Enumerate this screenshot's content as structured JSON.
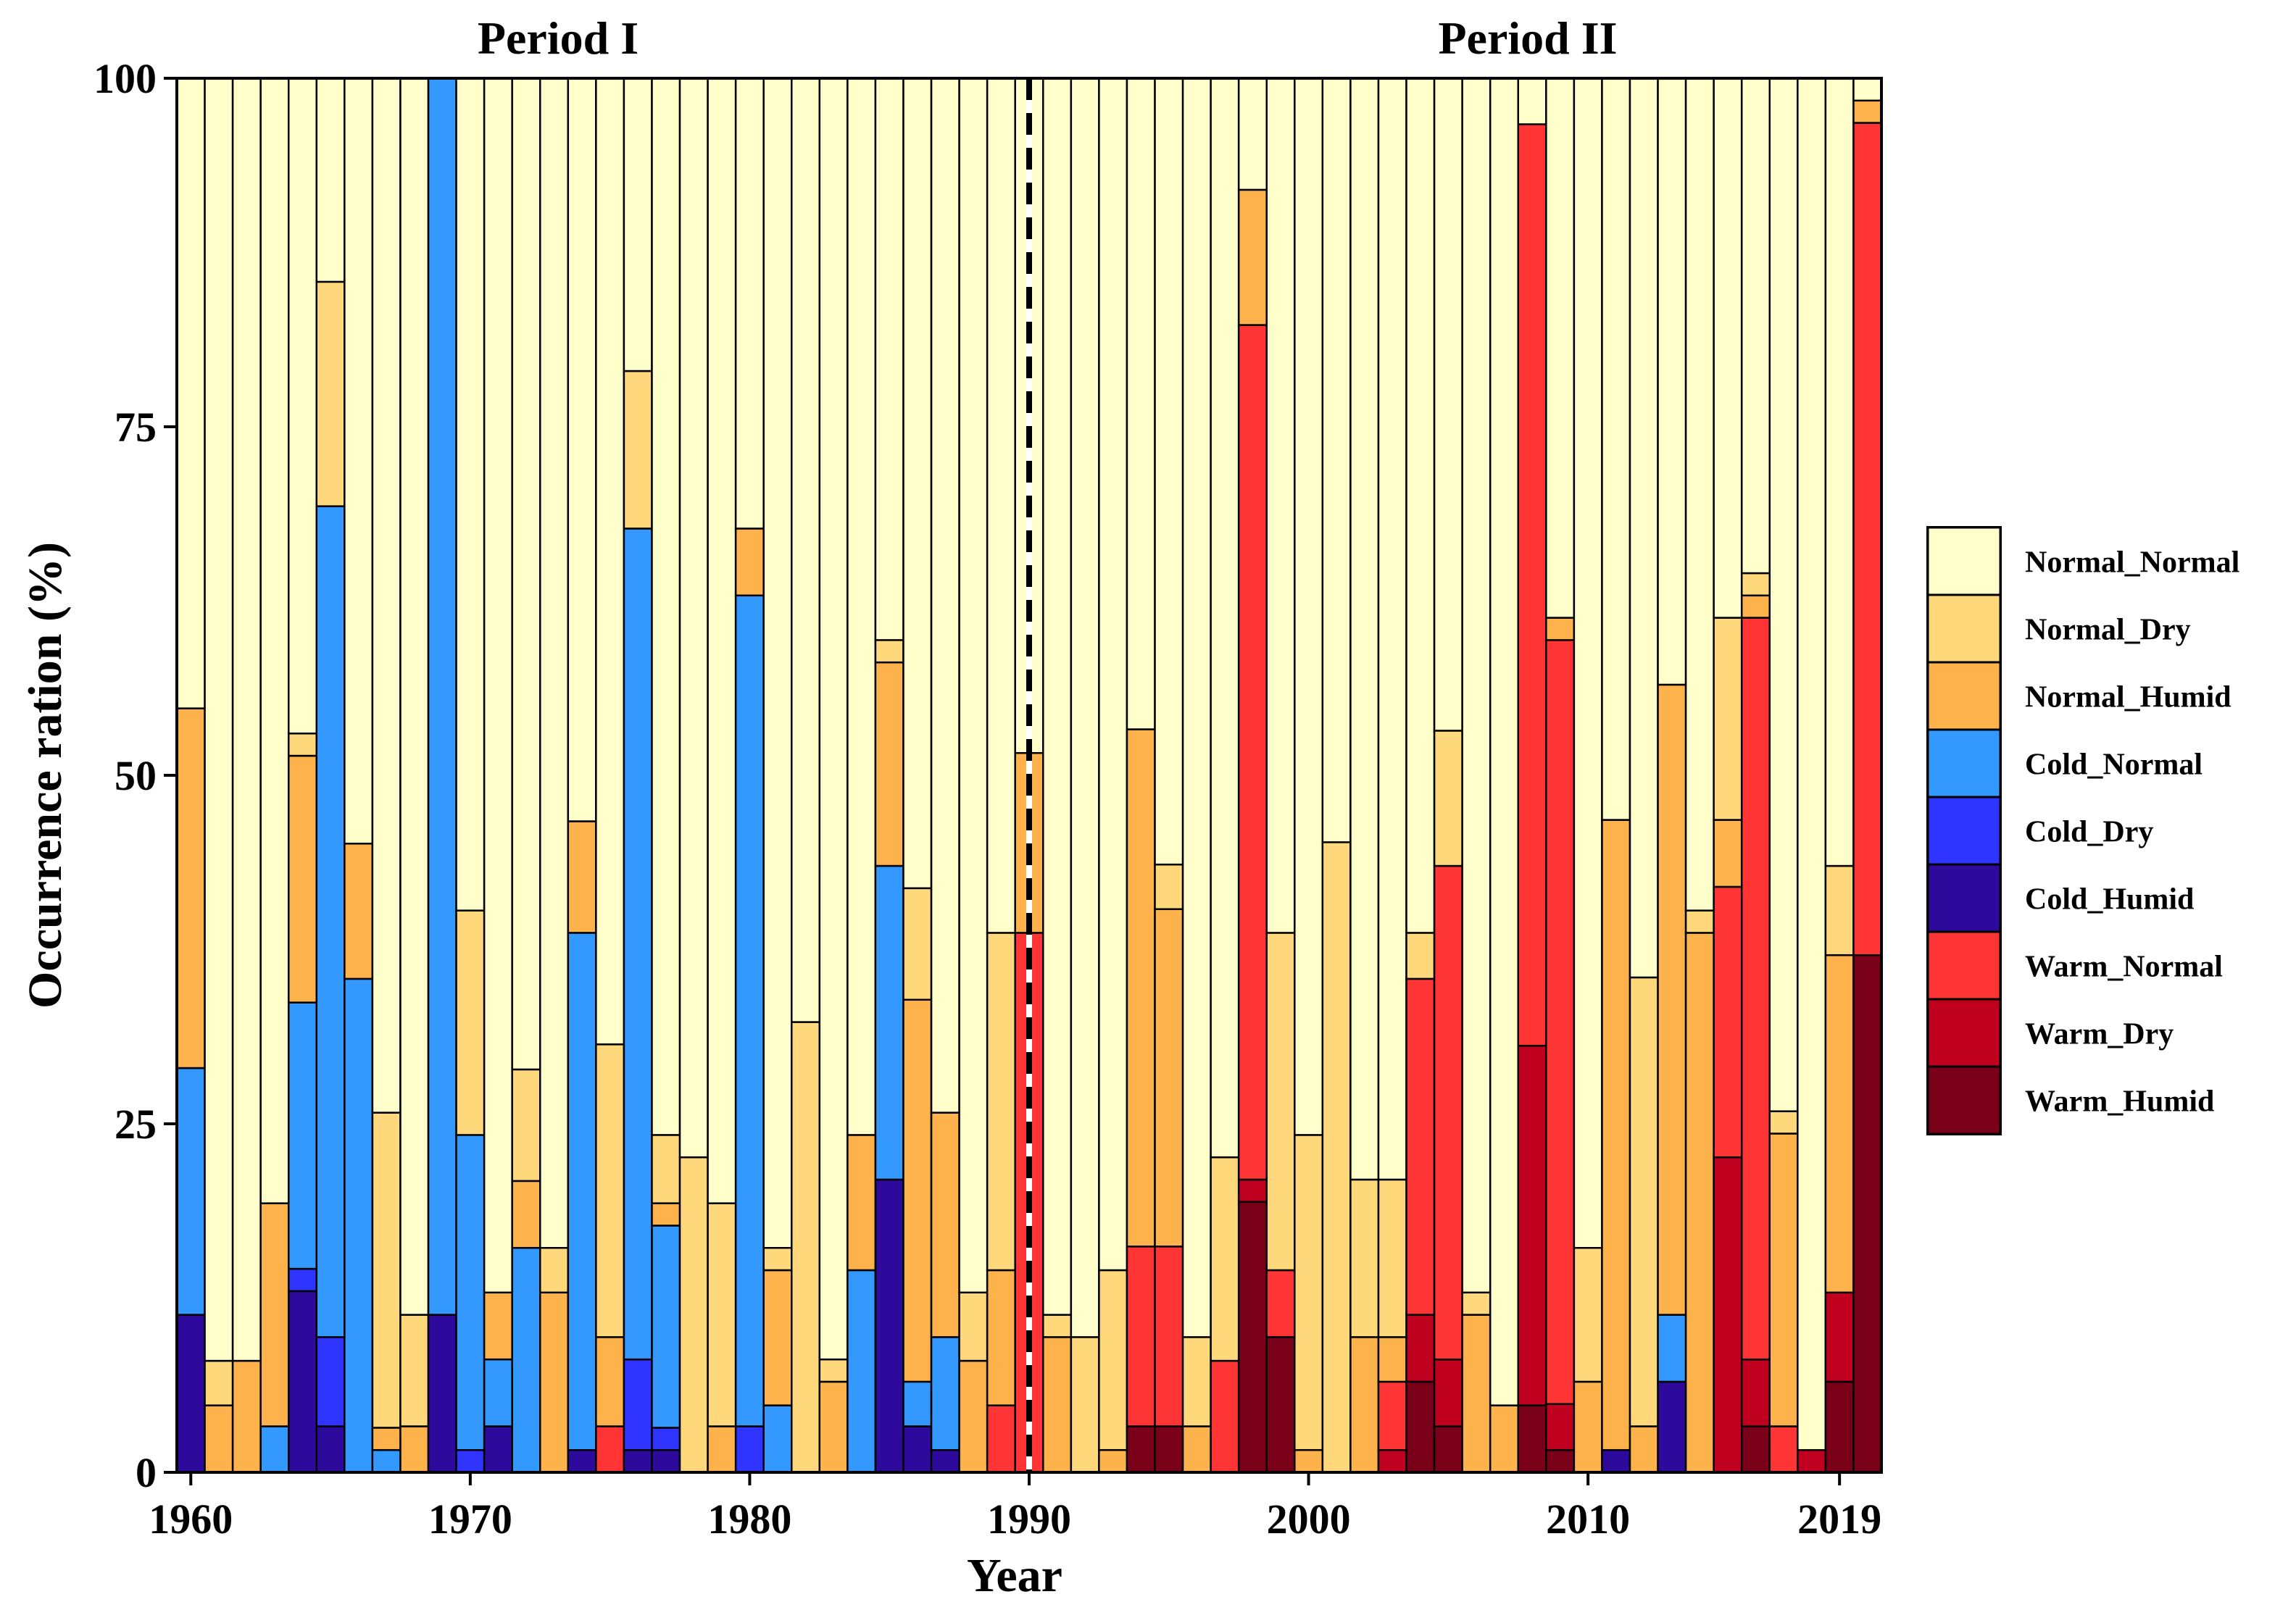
{
  "chart_data": {
    "type": "bar",
    "stacked": true,
    "title": "",
    "period_labels": [
      "Period I",
      "Period II"
    ],
    "xlabel": "Year",
    "ylabel": "Occurrence ration (%)",
    "ylim": [
      0,
      100
    ],
    "yticks": [
      "0",
      "25",
      "50",
      "75",
      "100"
    ],
    "xticks": [
      {
        "year": 1960,
        "label": "1960"
      },
      {
        "year": 1970,
        "label": "1970"
      },
      {
        "year": 1980,
        "label": "1980"
      },
      {
        "year": 1990,
        "label": "1990"
      },
      {
        "year": 2000,
        "label": "2000"
      },
      {
        "year": 2010,
        "label": "2010"
      },
      {
        "year": 2019,
        "label": "2019"
      }
    ],
    "divider_year": 1990,
    "legend_position": "right",
    "series": [
      {
        "name": "Warm_Humid",
        "color": "#7a0019"
      },
      {
        "name": "Warm_Dry",
        "color": "#c0001f"
      },
      {
        "name": "Warm_Normal",
        "color": "#ff3535"
      },
      {
        "name": "Cold_Humid",
        "color": "#2e0a9c"
      },
      {
        "name": "Cold_Dry",
        "color": "#2f35ff"
      },
      {
        "name": "Cold_Normal",
        "color": "#3399ff"
      },
      {
        "name": "Normal_Humid",
        "color": "#fdb24c"
      },
      {
        "name": "Normal_Dry",
        "color": "#fed87a"
      },
      {
        "name": "Normal_Normal",
        "color": "#ffffcc"
      }
    ],
    "legend_order": [
      "Normal_Normal",
      "Normal_Dry",
      "Normal_Humid",
      "Cold_Normal",
      "Cold_Dry",
      "Cold_Humid",
      "Warm_Normal",
      "Warm_Dry",
      "Warm_Humid"
    ],
    "years": [
      {
        "year": 1960,
        "segments": {
          "Cold_Humid": 11.3,
          "Cold_Normal": 17.7,
          "Normal_Humid": 25.8
        }
      },
      {
        "year": 1961,
        "segments": {
          "Normal_Humid": 4.8,
          "Normal_Dry": 3.2
        }
      },
      {
        "year": 1962,
        "segments": {
          "Normal_Humid": 8.0
        }
      },
      {
        "year": 1963,
        "segments": {
          "Cold_Normal": 3.3,
          "Normal_Humid": 16.0
        }
      },
      {
        "year": 1964,
        "segments": {
          "Cold_Humid": 13.0,
          "Cold_Dry": 1.6,
          "Cold_Normal": 19.1,
          "Normal_Humid": 17.7,
          "Normal_Dry": 1.6
        }
      },
      {
        "year": 1965,
        "segments": {
          "Cold_Humid": 3.3,
          "Cold_Dry": 6.4,
          "Cold_Normal": 59.6,
          "Normal_Dry": 16.1
        }
      },
      {
        "year": 1966,
        "segments": {
          "Cold_Normal": 35.4,
          "Normal_Humid": 9.7
        }
      },
      {
        "year": 1967,
        "segments": {
          "Cold_Normal": 1.6,
          "Normal_Humid": 1.6,
          "Normal_Dry": 22.6
        }
      },
      {
        "year": 1968,
        "segments": {
          "Normal_Humid": 3.3,
          "Normal_Dry": 8.0
        }
      },
      {
        "year": 1969,
        "segments": {
          "Cold_Humid": 11.3,
          "Cold_Normal": 88.7
        }
      },
      {
        "year": 1970,
        "segments": {
          "Cold_Dry": 1.6,
          "Cold_Normal": 22.6,
          "Normal_Dry": 16.1
        }
      },
      {
        "year": 1971,
        "segments": {
          "Cold_Humid": 3.3,
          "Cold_Normal": 4.8,
          "Normal_Humid": 4.8
        }
      },
      {
        "year": 1972,
        "segments": {
          "Cold_Normal": 16.1,
          "Normal_Humid": 4.8,
          "Normal_Dry": 8.0
        }
      },
      {
        "year": 1973,
        "segments": {
          "Normal_Humid": 12.9,
          "Normal_Dry": 3.2
        }
      },
      {
        "year": 1974,
        "segments": {
          "Cold_Humid": 1.6,
          "Cold_Normal": 37.1,
          "Normal_Humid": 8.0
        }
      },
      {
        "year": 1975,
        "segments": {
          "Warm_Normal": 3.3,
          "Normal_Humid": 6.4,
          "Normal_Dry": 21.0
        }
      },
      {
        "year": 1976,
        "segments": {
          "Cold_Humid": 1.6,
          "Cold_Dry": 6.5,
          "Cold_Normal": 59.6,
          "Normal_Dry": 11.3
        }
      },
      {
        "year": 1977,
        "segments": {
          "Cold_Humid": 1.6,
          "Cold_Dry": 1.6,
          "Cold_Normal": 14.5,
          "Normal_Humid": 1.6,
          "Normal_Dry": 4.9
        }
      },
      {
        "year": 1978,
        "segments": {
          "Normal_Dry": 22.6
        }
      },
      {
        "year": 1979,
        "segments": {
          "Normal_Humid": 3.3,
          "Normal_Dry": 16.0
        }
      },
      {
        "year": 1980,
        "segments": {
          "Cold_Dry": 3.3,
          "Cold_Normal": 59.6,
          "Normal_Humid": 4.8
        }
      },
      {
        "year": 1981,
        "segments": {
          "Cold_Normal": 4.8,
          "Normal_Humid": 9.7,
          "Normal_Dry": 1.6
        }
      },
      {
        "year": 1982,
        "segments": {
          "Normal_Dry": 32.3
        }
      },
      {
        "year": 1983,
        "segments": {
          "Normal_Humid": 6.5,
          "Normal_Dry": 1.6
        }
      },
      {
        "year": 1984,
        "segments": {
          "Cold_Normal": 14.5,
          "Normal_Humid": 9.7
        }
      },
      {
        "year": 1985,
        "segments": {
          "Cold_Humid": 21.0,
          "Cold_Normal": 22.5,
          "Normal_Humid": 14.6,
          "Normal_Dry": 1.6
        }
      },
      {
        "year": 1986,
        "segments": {
          "Cold_Humid": 3.3,
          "Cold_Normal": 3.2,
          "Normal_Humid": 27.4,
          "Normal_Dry": 8.0
        }
      },
      {
        "year": 1987,
        "segments": {
          "Cold_Humid": 1.6,
          "Cold_Normal": 8.1,
          "Normal_Humid": 16.1
        }
      },
      {
        "year": 1988,
        "segments": {
          "Normal_Humid": 8.0,
          "Normal_Dry": 4.9
        }
      },
      {
        "year": 1989,
        "segments": {
          "Warm_Normal": 4.8,
          "Normal_Humid": 9.7,
          "Normal_Dry": 24.2
        }
      },
      {
        "year": 1990,
        "segments": {
          "Warm_Normal": 38.7,
          "Normal_Humid": 12.9
        }
      },
      {
        "year": 1991,
        "segments": {
          "Normal_Humid": 9.7,
          "Normal_Dry": 1.6
        }
      },
      {
        "year": 1992,
        "segments": {
          "Normal_Dry": 9.7
        }
      },
      {
        "year": 1993,
        "segments": {
          "Normal_Humid": 1.6,
          "Normal_Dry": 12.9
        }
      },
      {
        "year": 1994,
        "segments": {
          "Warm_Humid": 3.3,
          "Warm_Normal": 12.9,
          "Normal_Humid": 37.1
        }
      },
      {
        "year": 1995,
        "segments": {
          "Warm_Humid": 3.3,
          "Warm_Normal": 12.9,
          "Normal_Humid": 24.2,
          "Normal_Dry": 3.2
        }
      },
      {
        "year": 1996,
        "segments": {
          "Normal_Humid": 3.3,
          "Normal_Dry": 6.4
        }
      },
      {
        "year": 1997,
        "segments": {
          "Warm_Normal": 8.0,
          "Normal_Dry": 14.6
        }
      },
      {
        "year": 1998,
        "segments": {
          "Warm_Humid": 19.4,
          "Warm_Dry": 1.6,
          "Warm_Normal": 61.3,
          "Normal_Humid": 9.7
        }
      },
      {
        "year": 1999,
        "segments": {
          "Warm_Humid": 9.7,
          "Warm_Normal": 4.8,
          "Normal_Dry": 24.2
        }
      },
      {
        "year": 2000,
        "segments": {
          "Normal_Humid": 1.6,
          "Normal_Dry": 22.6
        }
      },
      {
        "year": 2001,
        "segments": {
          "Normal_Dry": 45.2
        }
      },
      {
        "year": 2002,
        "segments": {
          "Normal_Humid": 9.7,
          "Normal_Dry": 11.3
        }
      },
      {
        "year": 2003,
        "segments": {
          "Warm_Dry": 1.6,
          "Warm_Normal": 4.9,
          "Normal_Humid": 3.2,
          "Normal_Dry": 11.3
        }
      },
      {
        "year": 2004,
        "segments": {
          "Warm_Humid": 6.5,
          "Warm_Dry": 4.8,
          "Warm_Normal": 24.1,
          "Normal_Dry": 3.3
        }
      },
      {
        "year": 2005,
        "segments": {
          "Warm_Humid": 3.3,
          "Warm_Dry": 4.8,
          "Warm_Normal": 35.4,
          "Normal_Dry": 9.7
        }
      },
      {
        "year": 2006,
        "segments": {
          "Normal_Humid": 11.3,
          "Normal_Dry": 1.6
        }
      },
      {
        "year": 2007,
        "segments": {
          "Normal_Humid": 4.8
        }
      },
      {
        "year": 2008,
        "segments": {
          "Warm_Humid": 4.8,
          "Warm_Dry": 25.8,
          "Warm_Normal": 66.1
        }
      },
      {
        "year": 2009,
        "segments": {
          "Warm_Humid": 1.6,
          "Warm_Dry": 3.3,
          "Warm_Normal": 54.8,
          "Normal_Humid": 1.6
        }
      },
      {
        "year": 2010,
        "segments": {
          "Normal_Humid": 6.5,
          "Normal_Dry": 9.6
        }
      },
      {
        "year": 2011,
        "segments": {
          "Cold_Humid": 1.6,
          "Normal_Humid": 45.2
        }
      },
      {
        "year": 2012,
        "segments": {
          "Normal_Humid": 3.3,
          "Normal_Dry": 32.2
        }
      },
      {
        "year": 2013,
        "segments": {
          "Cold_Humid": 6.5,
          "Cold_Normal": 4.8,
          "Normal_Humid": 45.2
        }
      },
      {
        "year": 2014,
        "segments": {
          "Normal_Humid": 38.7,
          "Normal_Dry": 1.6
        }
      },
      {
        "year": 2015,
        "segments": {
          "Warm_Dry": 22.6,
          "Warm_Normal": 19.4,
          "Normal_Humid": 4.8,
          "Normal_Dry": 14.5
        }
      },
      {
        "year": 2016,
        "segments": {
          "Warm_Humid": 3.3,
          "Warm_Dry": 4.8,
          "Warm_Normal": 53.2,
          "Normal_Humid": 1.6,
          "Normal_Dry": 1.6
        }
      },
      {
        "year": 2017,
        "segments": {
          "Warm_Normal": 3.3,
          "Normal_Humid": 21.0,
          "Normal_Dry": 1.6
        }
      },
      {
        "year": 2018,
        "segments": {
          "Warm_Dry": 1.6,
          "Warm_Dry_Upper": 0,
          "Warm_Normal": 0,
          "Normal_Humid": 0
        }
      },
      {
        "year": 2019,
        "segments": {
          "Warm_Humid": 6.5,
          "Warm_Dry": 6.4,
          "Normal_Humid": 24.2,
          "Normal_Dry": 6.4
        }
      },
      {
        "year": 2020,
        "segments": {
          "Warm_Humid": 37.1,
          "Warm_Normal": 59.7,
          "Normal_Humid": 1.6,
          "Normal_Dry": 0.0
        }
      }
    ]
  }
}
